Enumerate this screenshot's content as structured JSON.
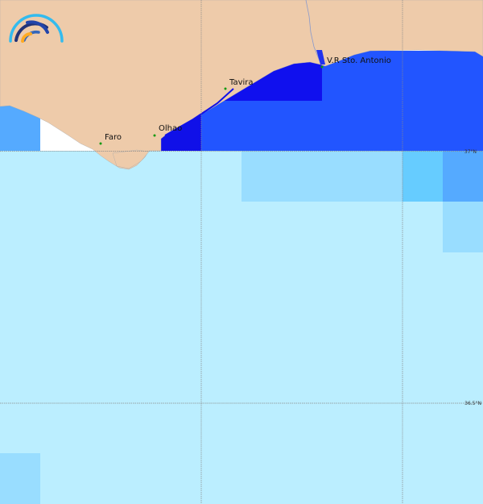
{
  "map": {
    "cities": [
      {
        "name": "Faro"
      },
      {
        "name": "Olhao"
      },
      {
        "name": "Tavira"
      },
      {
        "name": "V.R Sto. Antonio"
      }
    ],
    "lat_labels": [
      "37°N",
      "36.5°N"
    ],
    "colors": {
      "land": "#eecbaa",
      "ocean_base": "#bbeeff",
      "light_blue": "#99ddff",
      "sky_blue": "#66ccff",
      "mid_blue": "#55aaff",
      "blue": "#2255ff",
      "deep_blue": "#1010e8",
      "city_dot": "#119911"
    },
    "logo": {
      "icon": "arc-logo-icon"
    }
  }
}
